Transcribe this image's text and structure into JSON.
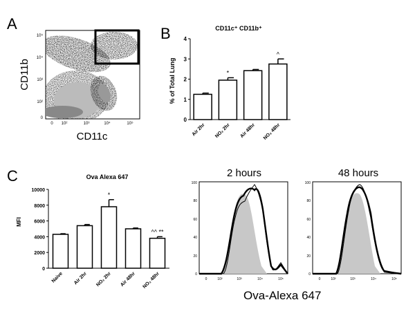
{
  "panel_letters": {
    "a": "A",
    "b": "B",
    "c": "C"
  },
  "chart_data": [
    {
      "id": "panel_a",
      "type": "scatter",
      "title": "",
      "xlabel": "CD11c",
      "ylabel": "CD11b",
      "x_ticks": [
        "0",
        "10²",
        "10³",
        "10⁴",
        "10⁵"
      ],
      "y_ticks": [
        "0",
        "10²",
        "10³",
        "10⁴",
        "10⁵"
      ],
      "gate": "CD11c high CD11b high"
    },
    {
      "id": "panel_b",
      "type": "bar",
      "title": "CD11c⁺ CD11b⁺",
      "xlabel": "",
      "ylabel": "% of Total Lung",
      "categories": [
        "Air 2hr",
        "NO₂ 2hr",
        "Air 48hr",
        "NO₂ 48hr"
      ],
      "values": [
        1.25,
        1.95,
        2.42,
        2.75
      ],
      "errors": [
        0.06,
        0.12,
        0.06,
        0.25
      ],
      "annotations": [
        "",
        "*",
        "",
        "^"
      ],
      "ylim": [
        0,
        4
      ],
      "y_ticks": [
        0,
        1,
        2,
        3,
        4
      ]
    },
    {
      "id": "panel_c_bar",
      "type": "bar",
      "title": "Ova Alexa 647",
      "xlabel": "",
      "ylabel": "MFI",
      "categories": [
        "Naive",
        "Air 2hr",
        "NO₂ 2hr",
        "Air 48hr",
        "NO₂ 48hr"
      ],
      "values": [
        4300,
        5400,
        7800,
        5000,
        3800
      ],
      "errors": [
        80,
        150,
        900,
        100,
        200
      ],
      "annotations": [
        "",
        "",
        "*",
        "",
        "^^ **"
      ],
      "ylim": [
        0,
        10000
      ],
      "y_ticks": [
        0,
        2000,
        4000,
        6000,
        8000,
        10000
      ]
    },
    {
      "id": "panel_c_hist_2h",
      "type": "area",
      "title": "2 hours",
      "xlabel": "",
      "ylabel": "",
      "y_ticks": [
        0,
        20,
        40,
        60,
        80,
        100
      ],
      "x_ticks": [
        "0",
        "10²",
        "10³",
        "10⁴",
        "10⁵"
      ]
    },
    {
      "id": "panel_c_hist_48h",
      "type": "area",
      "title": "48 hours",
      "xlabel": "",
      "ylabel": "",
      "y_ticks": [
        0,
        20,
        40,
        60,
        80,
        100
      ],
      "x_ticks": [
        "0",
        "10²",
        "10³",
        "10⁴",
        "10⁵"
      ]
    }
  ],
  "shared_xlabel": "Ova-Alexa 647"
}
